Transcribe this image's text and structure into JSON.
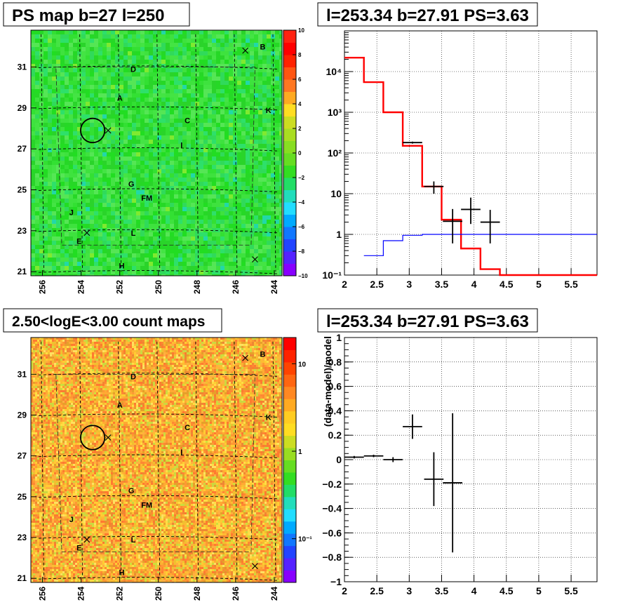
{
  "panels": {
    "ps_map": {
      "title": "PS map b=27 l=250"
    },
    "spectrum": {
      "title": "l=253.34 b=27.91 PS=3.63"
    },
    "count_map": {
      "title": "2.50<logE<3.00 count maps"
    },
    "residual": {
      "title": "l=253.34 b=27.91 PS=3.63"
    }
  },
  "maps": {
    "x_ticks": [
      "256",
      "254",
      "252",
      "250",
      "248",
      "246",
      "244"
    ],
    "y_ticks": [
      "31",
      "29",
      "27",
      "25",
      "23",
      "21"
    ],
    "x_range": [
      256.6,
      243.6
    ],
    "y_range": [
      20.8,
      32.8
    ],
    "region_labels": [
      {
        "text": "B",
        "l": 244.6,
        "b": 32.0
      },
      {
        "text": "D",
        "l": 251.3,
        "b": 30.9
      },
      {
        "text": "A",
        "l": 252.0,
        "b": 29.5
      },
      {
        "text": "K",
        "l": 244.3,
        "b": 28.9
      },
      {
        "text": "C",
        "l": 248.5,
        "b": 28.4
      },
      {
        "text": "I",
        "l": 248.8,
        "b": 27.2
      },
      {
        "text": "G",
        "l": 251.4,
        "b": 25.3
      },
      {
        "text": "FM",
        "l": 250.6,
        "b": 24.6
      },
      {
        "text": "J",
        "l": 254.5,
        "b": 23.9
      },
      {
        "text": "L",
        "l": 251.3,
        "b": 22.9
      },
      {
        "text": "E",
        "l": 254.1,
        "b": 22.5
      },
      {
        "text": "H",
        "l": 251.9,
        "b": 21.3
      }
    ],
    "crosses": [
      {
        "l": 245.5,
        "b": 31.8
      },
      {
        "l": 252.6,
        "b": 27.9
      },
      {
        "l": 253.7,
        "b": 22.9
      },
      {
        "l": 245.0,
        "b": 21.6
      }
    ],
    "circle": {
      "l": 253.4,
      "b": 27.9,
      "r_deg": 0.5
    }
  },
  "colorbars": {
    "ps_map": {
      "ticks": [
        "10",
        "8",
        "6",
        "4",
        "2",
        "0",
        "−2",
        "−4",
        "−6",
        "−8",
        "−10"
      ],
      "range": [
        -10,
        10
      ]
    },
    "count_map": {
      "ticks": [
        "10",
        "1",
        "10⁻¹"
      ],
      "tick_values": [
        10,
        1,
        0.1
      ],
      "log_range": [
        -1.5,
        1.3
      ]
    }
  },
  "chart_data": [
    {
      "type": "line",
      "panel": "spectrum",
      "title": "l=253.34 b=27.91 PS=3.63",
      "xlabel": "",
      "ylabel": "",
      "xlim": [
        2,
        5.9
      ],
      "ylim": [
        0.1,
        100000
      ],
      "y_scale": "log",
      "grid": true,
      "x_ticks": [
        "2",
        "2.5",
        "3",
        "3.5",
        "4",
        "4.5",
        "5",
        "5.5"
      ],
      "y_ticks": [
        "10⁴",
        "10³",
        "10²",
        "10",
        "1",
        "10⁻¹"
      ],
      "y_tick_values": [
        10000,
        1000,
        100,
        10,
        1,
        0.1
      ],
      "series": [
        {
          "color": "#ff0000",
          "style": "step",
          "edges": [
            2.0,
            2.3,
            2.6,
            2.9,
            3.2,
            3.5,
            3.8,
            4.1,
            4.4,
            5.9
          ],
          "values": [
            22000,
            5500,
            1000,
            150,
            15,
            2.3,
            0.45,
            0.14,
            0.1
          ]
        },
        {
          "color": "#0000ff",
          "style": "step",
          "edges": [
            2.3,
            2.6,
            2.9,
            3.2,
            5.9
          ],
          "values": [
            0.3,
            0.7,
            0.95,
            1.0
          ]
        },
        {
          "color": "#000000",
          "style": "errorbars",
          "points": [
            {
              "x": 3.05,
              "xerr": 0.15,
              "y": 180,
              "ylo": 170,
              "yhi": 190
            },
            {
              "x": 3.38,
              "xerr": 0.15,
              "y": 15,
              "ylo": 10,
              "yhi": 20
            },
            {
              "x": 3.67,
              "xerr": 0.15,
              "y": 2.1,
              "ylo": 0.6,
              "yhi": 4.2
            },
            {
              "x": 3.95,
              "xerr": 0.15,
              "y": 4.1,
              "ylo": 1.8,
              "yhi": 8.0
            },
            {
              "x": 4.25,
              "xerr": 0.15,
              "y": 2.0,
              "ylo": 0.6,
              "yhi": 4.0
            }
          ]
        }
      ]
    },
    {
      "type": "scatter",
      "panel": "residual",
      "title": "l=253.34 b=27.91 PS=3.63",
      "xlabel": "",
      "ylabel": "(data-model)/model",
      "xlim": [
        2,
        5.9
      ],
      "ylim": [
        -1,
        1
      ],
      "grid": true,
      "x_ticks": [
        "2",
        "2.5",
        "3",
        "3.5",
        "4",
        "4.5",
        "5",
        "5.5"
      ],
      "y_ticks": [
        "1",
        "0.8",
        "0.6",
        "0.4",
        "0.2",
        "0",
        "−0.2",
        "−0.4",
        "−0.6",
        "−0.8",
        "−1"
      ],
      "y_tick_values": [
        1,
        0.8,
        0.6,
        0.4,
        0.2,
        0,
        -0.2,
        -0.4,
        -0.6,
        -0.8,
        -1
      ],
      "series": [
        {
          "color": "#000000",
          "style": "errorbars",
          "points": [
            {
              "x": 2.15,
              "xerr": 0.15,
              "y": 0.02,
              "err": 0.01
            },
            {
              "x": 2.45,
              "xerr": 0.15,
              "y": 0.03,
              "err": 0.01
            },
            {
              "x": 2.75,
              "xerr": 0.15,
              "y": 0.0,
              "err": 0.02
            },
            {
              "x": 3.05,
              "xerr": 0.15,
              "y": 0.27,
              "err": 0.1
            },
            {
              "x": 3.38,
              "xerr": 0.15,
              "y": -0.16,
              "err": 0.22
            },
            {
              "x": 3.67,
              "xerr": 0.15,
              "y": -0.19,
              "err": 0.57
            }
          ]
        }
      ]
    }
  ]
}
